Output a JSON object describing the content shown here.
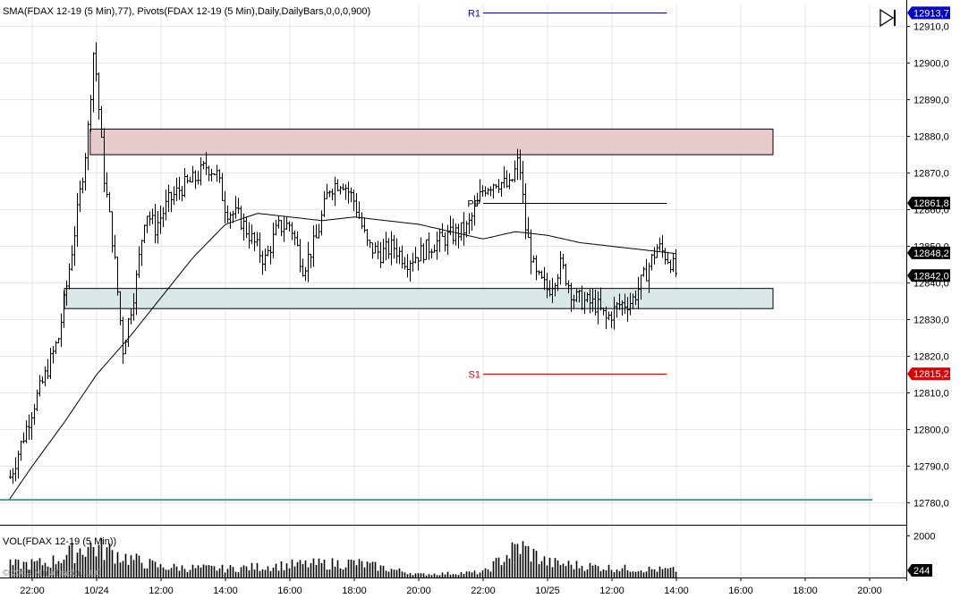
{
  "header": {
    "indicators_label": "SMA(FDAX 12-19 (5 Min),77), Pivots(FDAX 12-19 (5 Min),Daily,DailyBars,0,0,0,900)",
    "volume_label": "VOL(FDAX 12-19 (5 Min))",
    "copyright": "© 2019 NinjaTrader, LLC"
  },
  "colors": {
    "background": "#ffffff",
    "grid": "#e4e4e4",
    "bars": "#000000",
    "sma": "#000000",
    "pivot_pp": "#000000",
    "pivot_r1": "#0000cc",
    "pivot_s1": "#dd0000",
    "resistance_zone": "#e8cccc",
    "support_zone": "#d8e8e8",
    "horizontal_line": "#4a9a9a",
    "price_badge_dark": "#000000",
    "price_badge_blue": "#0000cc",
    "price_badge_red": "#dd0000"
  },
  "scroll_button_icon": "skip-end-icon",
  "chart_data": {
    "type": "ohlc",
    "instrument": "FDAX 12-19",
    "interval": "5 Min",
    "ylim": [
      12774,
      12916
    ],
    "y_ticks": [
      "12910,0",
      "12900,0",
      "12890,0",
      "12880,0",
      "12870,0",
      "12860,0",
      "12850,0",
      "12840,0",
      "12830,0",
      "12820,0",
      "12810,0",
      "12800,0",
      "12790,0",
      "12780,0"
    ],
    "y_tick_values": [
      12910,
      12900,
      12890,
      12880,
      12870,
      12860,
      12850,
      12840,
      12830,
      12820,
      12810,
      12800,
      12790,
      12780
    ],
    "x_tick_labels": [
      "22:00",
      "10/24",
      "12:00",
      "14:00",
      "16:00",
      "18:00",
      "20:00",
      "22:00",
      "10/25",
      "12:00",
      "14:00",
      "16:00",
      "18:00",
      "20:00"
    ],
    "x_tick_hours": [
      -2,
      0,
      2,
      4,
      6,
      8,
      10,
      12,
      14,
      16,
      18,
      20,
      22,
      24
    ],
    "x_axis_note": "hours measured from 10/24 00:00 for the first session; continuous time axis",
    "price_series_anchors": [
      {
        "t": -2.7,
        "p": 12787
      },
      {
        "t": -2.4,
        "p": 12795
      },
      {
        "t": -2.0,
        "p": 12806
      },
      {
        "t": -1.6,
        "p": 12815
      },
      {
        "t": -1.2,
        "p": 12825
      },
      {
        "t": -0.9,
        "p": 12842
      },
      {
        "t": -0.6,
        "p": 12860
      },
      {
        "t": -0.3,
        "p": 12880
      },
      {
        "t": -0.1,
        "p": 12905
      },
      {
        "t": 0.2,
        "p": 12870
      },
      {
        "t": 0.5,
        "p": 12850
      },
      {
        "t": 0.8,
        "p": 12822
      },
      {
        "t": 1.2,
        "p": 12840
      },
      {
        "t": 1.5,
        "p": 12860
      },
      {
        "t": 1.8,
        "p": 12855
      },
      {
        "t": 2.2,
        "p": 12862
      },
      {
        "t": 2.6,
        "p": 12866
      },
      {
        "t": 3.0,
        "p": 12868
      },
      {
        "t": 3.4,
        "p": 12872
      },
      {
        "t": 3.7,
        "p": 12870
      },
      {
        "t": 4.0,
        "p": 12860
      },
      {
        "t": 4.4,
        "p": 12858
      },
      {
        "t": 4.8,
        "p": 12852
      },
      {
        "t": 5.2,
        "p": 12846
      },
      {
        "t": 5.6,
        "p": 12855
      },
      {
        "t": 6.0,
        "p": 12856
      },
      {
        "t": 6.4,
        "p": 12844
      },
      {
        "t": 6.8,
        "p": 12852
      },
      {
        "t": 7.2,
        "p": 12866
      },
      {
        "t": 7.6,
        "p": 12868
      },
      {
        "t": 8.0,
        "p": 12862
      },
      {
        "t": 8.4,
        "p": 12850
      },
      {
        "t": 8.8,
        "p": 12848
      },
      {
        "t": 9.2,
        "p": 12850
      },
      {
        "t": 9.6,
        "p": 12846
      },
      {
        "t": 10.0,
        "p": 12848
      },
      {
        "t": 10.5,
        "p": 12851
      },
      {
        "t": 11.0,
        "p": 12853
      },
      {
        "t": 11.5,
        "p": 12855
      },
      {
        "t": 12.0,
        "p": 12866
      },
      {
        "t": 12.4,
        "p": 12868
      },
      {
        "t": 12.8,
        "p": 12866
      },
      {
        "t": 13.1,
        "p": 12874
      },
      {
        "t": 13.3,
        "p": 12855
      },
      {
        "t": 13.6,
        "p": 12842
      },
      {
        "t": 14.0,
        "p": 12838
      },
      {
        "t": 14.4,
        "p": 12845
      },
      {
        "t": 14.8,
        "p": 12836
      },
      {
        "t": 15.1,
        "p": 12835
      },
      {
        "t": 15.5,
        "p": 12834
      },
      {
        "t": 15.8,
        "p": 12830
      },
      {
        "t": 16.2,
        "p": 12834
      },
      {
        "t": 16.6,
        "p": 12835
      },
      {
        "t": 17.0,
        "p": 12842
      },
      {
        "t": 17.4,
        "p": 12850
      },
      {
        "t": 17.8,
        "p": 12846
      },
      {
        "t": 18.0,
        "p": 12842
      }
    ],
    "sma_period": 77,
    "sma_anchors": [
      {
        "t": -2.7,
        "p": 12781
      },
      {
        "t": -2.0,
        "p": 12790
      },
      {
        "t": -1.0,
        "p": 12802
      },
      {
        "t": 0.0,
        "p": 12815
      },
      {
        "t": 1.0,
        "p": 12825
      },
      {
        "t": 2.0,
        "p": 12836
      },
      {
        "t": 3.0,
        "p": 12847
      },
      {
        "t": 4.0,
        "p": 12856
      },
      {
        "t": 5.0,
        "p": 12859
      },
      {
        "t": 6.0,
        "p": 12858
      },
      {
        "t": 7.0,
        "p": 12857
      },
      {
        "t": 8.0,
        "p": 12858
      },
      {
        "t": 9.0,
        "p": 12857
      },
      {
        "t": 10.0,
        "p": 12856
      },
      {
        "t": 11.0,
        "p": 12854
      },
      {
        "t": 12.0,
        "p": 12852
      },
      {
        "t": 13.0,
        "p": 12854
      },
      {
        "t": 14.0,
        "p": 12853
      },
      {
        "t": 15.0,
        "p": 12851
      },
      {
        "t": 16.0,
        "p": 12850
      },
      {
        "t": 17.0,
        "p": 12849
      },
      {
        "t": 18.0,
        "p": 12848
      }
    ],
    "pivots": {
      "R1": {
        "label": "R1",
        "value": 12913.7,
        "from": 12.0,
        "to": 17.7
      },
      "PP": {
        "label": "PP",
        "value": 12861.8,
        "from": 12.0,
        "to": 17.7
      },
      "S1": {
        "label": "S1",
        "value": 12815.2,
        "from": 12.0,
        "to": 17.7
      }
    },
    "zones": [
      {
        "name": "resistance",
        "low": 12875,
        "high": 12882,
        "from": -0.2,
        "to": 21.0
      },
      {
        "name": "support",
        "low": 12833,
        "high": 12838.5,
        "from": -1.0,
        "to": 21.0
      }
    ],
    "horizontal_lines": [
      {
        "value": 12780.8
      }
    ],
    "price_badges": [
      {
        "label": "12913,7",
        "value": 12913.7,
        "style": "blue"
      },
      {
        "label": "12861,8",
        "value": 12861.8,
        "style": "dark"
      },
      {
        "label": "12848,2",
        "value": 12848.2,
        "style": "dark"
      },
      {
        "label": "12842,0",
        "value": 12842.0,
        "style": "dark"
      },
      {
        "label": "12815,2",
        "value": 12815.2,
        "style": "red"
      }
    ],
    "volume": {
      "label": "VOL(FDAX 12-19 (5 Min))",
      "y_tick": "2000",
      "y_tick_value": 2000,
      "ylim": [
        0,
        2400
      ],
      "last_value": 244,
      "last_value_label": "244",
      "anchors": [
        {
          "t": -2.7,
          "v": 600
        },
        {
          "t": -1.5,
          "v": 700
        },
        {
          "t": -0.3,
          "v": 1500
        },
        {
          "t": 0.3,
          "v": 1300
        },
        {
          "t": 1.0,
          "v": 900
        },
        {
          "t": 2.0,
          "v": 500
        },
        {
          "t": 4.0,
          "v": 420
        },
        {
          "t": 6.0,
          "v": 600
        },
        {
          "t": 8.0,
          "v": 700
        },
        {
          "t": 10.0,
          "v": 150
        },
        {
          "t": 12.0,
          "v": 250
        },
        {
          "t": 13.1,
          "v": 1500
        },
        {
          "t": 14.0,
          "v": 700
        },
        {
          "t": 16.0,
          "v": 450
        },
        {
          "t": 18.0,
          "v": 350
        }
      ]
    }
  }
}
